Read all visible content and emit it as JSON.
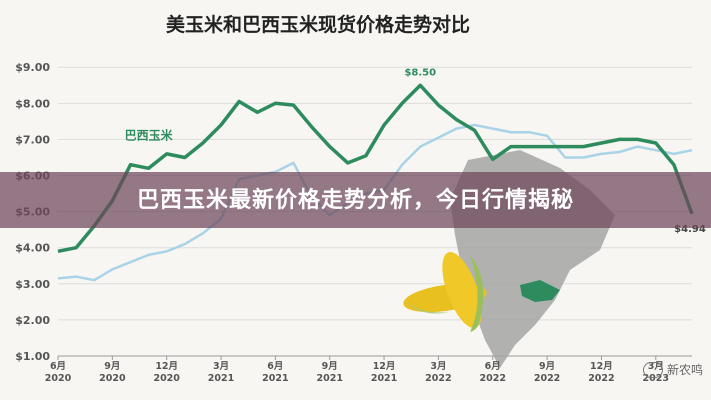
{
  "chart_data": {
    "type": "line",
    "title": "美玉米和巴西玉米现货价格走势对比",
    "x": [
      "2020-06",
      "2020-07",
      "2020-08",
      "2020-09",
      "2020-10",
      "2020-11",
      "2020-12",
      "2021-01",
      "2021-02",
      "2021-03",
      "2021-04",
      "2021-05",
      "2021-06",
      "2021-07",
      "2021-08",
      "2021-09",
      "2021-10",
      "2021-11",
      "2021-12",
      "2022-01",
      "2022-02",
      "2022-03",
      "2022-04",
      "2022-05",
      "2022-06",
      "2022-07",
      "2022-08",
      "2022-09",
      "2022-10",
      "2022-11",
      "2022-12",
      "2023-01",
      "2023-02",
      "2023-03",
      "2023-04",
      "2023-05"
    ],
    "x_tick_labels": [
      {
        "month": "6月",
        "year": "2020"
      },
      {
        "month": "9月",
        "year": "2020"
      },
      {
        "month": "12月",
        "year": "2020"
      },
      {
        "month": "3月",
        "year": "2021"
      },
      {
        "month": "6月",
        "year": "2021"
      },
      {
        "month": "9月",
        "year": "2021"
      },
      {
        "month": "12月",
        "year": "2021"
      },
      {
        "month": "3月",
        "year": "2022"
      },
      {
        "month": "6月",
        "year": "2022"
      },
      {
        "month": "9月",
        "year": "2022"
      },
      {
        "month": "12月",
        "year": "2022"
      },
      {
        "month": "3月",
        "year": "2023"
      }
    ],
    "x_tick_index": [
      0,
      3,
      6,
      9,
      12,
      15,
      18,
      21,
      24,
      27,
      30,
      33
    ],
    "y_ticks": [
      "$1.00",
      "$2.00",
      "$3.00",
      "$4.00",
      "$5.00",
      "$6.00",
      "$7.00",
      "$8.00",
      "$9.00"
    ],
    "ylim": [
      1,
      9.2
    ],
    "series": [
      {
        "name": "巴西玉米",
        "color": "#2e8b5e",
        "values": [
          3.9,
          4.0,
          4.6,
          5.3,
          6.3,
          6.2,
          6.6,
          6.5,
          6.9,
          7.4,
          8.05,
          7.75,
          8.0,
          7.95,
          7.35,
          6.8,
          6.35,
          6.55,
          7.4,
          8.0,
          8.5,
          7.95,
          7.55,
          7.25,
          6.45,
          6.8,
          6.8,
          6.8,
          6.8,
          6.8,
          6.9,
          7.0,
          7.0,
          6.9,
          6.3,
          4.94
        ]
      },
      {
        "name": "",
        "color": "#a9d3e6",
        "values": [
          3.15,
          3.2,
          3.1,
          3.4,
          3.6,
          3.8,
          3.9,
          4.1,
          4.4,
          4.8,
          5.9,
          6.0,
          6.1,
          6.35,
          5.4,
          4.9,
          5.25,
          5.5,
          5.6,
          6.3,
          6.8,
          7.05,
          7.3,
          7.4,
          7.3,
          7.2,
          7.2,
          7.1,
          6.5,
          6.5,
          6.6,
          6.65,
          6.8,
          6.7,
          6.6,
          6.7
        ]
      }
    ],
    "annotations": [
      {
        "label": "$8.50",
        "series": 0,
        "index": 20
      },
      {
        "label": "$4.94",
        "series": 0,
        "index": 35
      }
    ],
    "grid": true
  },
  "banner": {
    "text": "巴西玉米最新价格走势分析，今日行情揭秘"
  },
  "watermark": {
    "text": "新农鸣"
  }
}
